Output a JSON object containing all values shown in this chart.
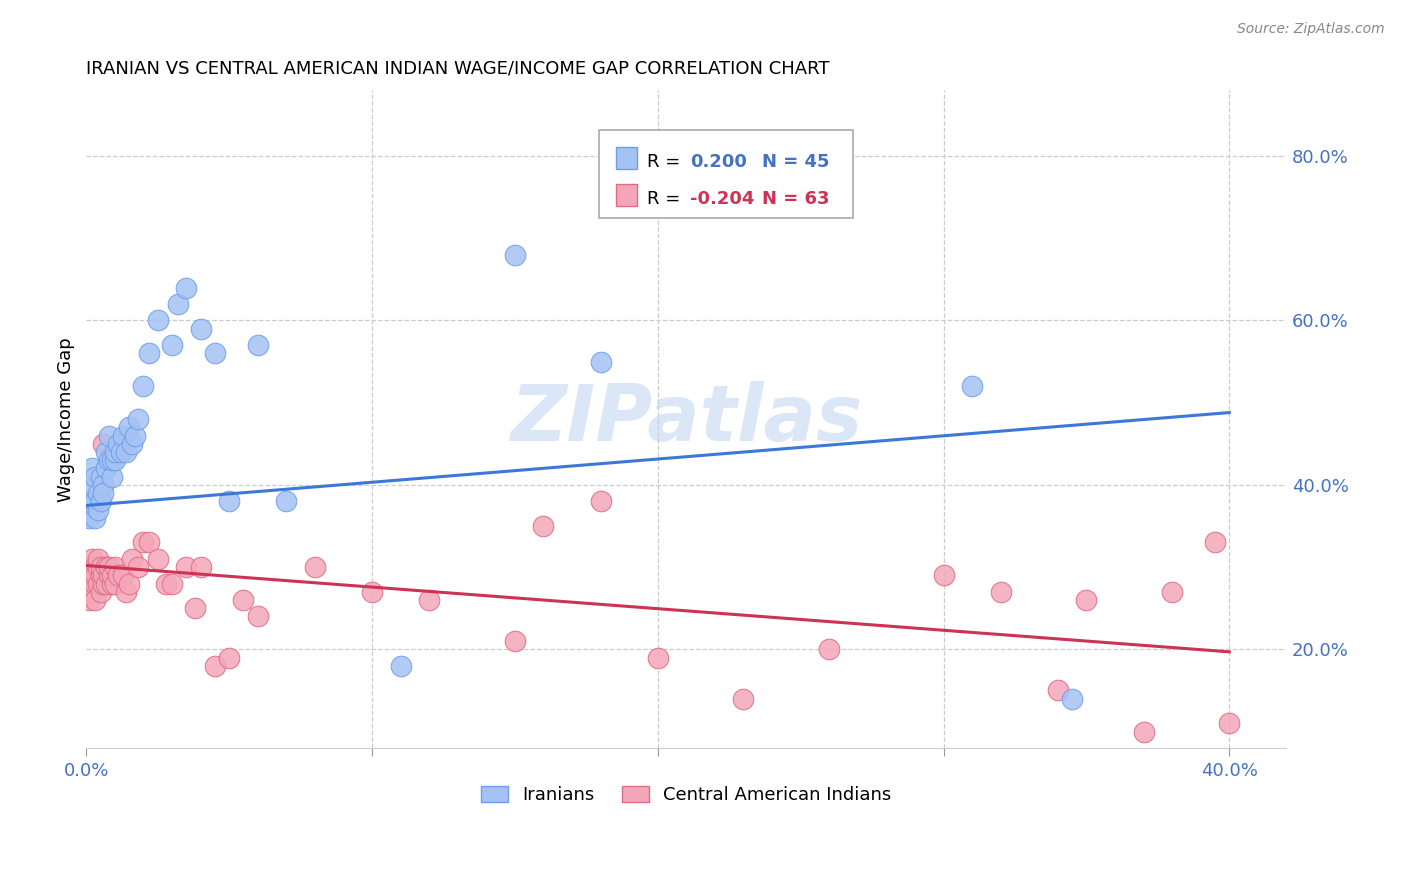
{
  "title": "IRANIAN VS CENTRAL AMERICAN INDIAN WAGE/INCOME GAP CORRELATION CHART",
  "source": "Source: ZipAtlas.com",
  "ylabel": "Wage/Income Gap",
  "xlim": [
    0.0,
    0.42
  ],
  "ylim": [
    0.08,
    0.88
  ],
  "xticks": [
    0.0,
    0.1,
    0.2,
    0.3,
    0.4
  ],
  "xticklabels": [
    "0.0%",
    "",
    "",
    "",
    "40.0%"
  ],
  "yticks_right": [
    0.2,
    0.4,
    0.6,
    0.8
  ],
  "ytick_right_labels": [
    "20.0%",
    "40.0%",
    "60.0%",
    "80.0%"
  ],
  "watermark": "ZIPatlas",
  "blue_color": "#a4c2f4",
  "pink_color": "#f4a7b9",
  "blue_edge_color": "#6d9eeb",
  "pink_edge_color": "#e06c84",
  "blue_line_color": "#3c78d8",
  "pink_line_color": "#cc3355",
  "legend_label_blue": "Iranians",
  "legend_label_pink": "Central American Indians",
  "blue_trend": [
    0.0,
    0.375,
    0.4,
    0.488
  ],
  "pink_trend": [
    0.0,
    0.302,
    0.4,
    0.197
  ],
  "iranians_x": [
    0.001,
    0.001,
    0.002,
    0.002,
    0.003,
    0.003,
    0.003,
    0.004,
    0.004,
    0.005,
    0.005,
    0.006,
    0.006,
    0.007,
    0.007,
    0.008,
    0.008,
    0.009,
    0.009,
    0.01,
    0.01,
    0.011,
    0.012,
    0.013,
    0.014,
    0.015,
    0.016,
    0.017,
    0.018,
    0.02,
    0.022,
    0.025,
    0.03,
    0.032,
    0.035,
    0.04,
    0.045,
    0.05,
    0.06,
    0.07,
    0.11,
    0.15,
    0.18,
    0.31,
    0.345
  ],
  "iranians_y": [
    0.38,
    0.36,
    0.4,
    0.42,
    0.38,
    0.41,
    0.36,
    0.37,
    0.39,
    0.41,
    0.38,
    0.4,
    0.39,
    0.42,
    0.44,
    0.43,
    0.46,
    0.41,
    0.43,
    0.43,
    0.44,
    0.45,
    0.44,
    0.46,
    0.44,
    0.47,
    0.45,
    0.46,
    0.48,
    0.52,
    0.56,
    0.6,
    0.57,
    0.62,
    0.64,
    0.59,
    0.56,
    0.38,
    0.57,
    0.38,
    0.18,
    0.68,
    0.55,
    0.52,
    0.14
  ],
  "cai_x": [
    0.001,
    0.001,
    0.001,
    0.002,
    0.002,
    0.002,
    0.003,
    0.003,
    0.003,
    0.003,
    0.004,
    0.004,
    0.004,
    0.005,
    0.005,
    0.005,
    0.006,
    0.006,
    0.006,
    0.007,
    0.007,
    0.008,
    0.008,
    0.009,
    0.009,
    0.01,
    0.01,
    0.011,
    0.012,
    0.013,
    0.014,
    0.015,
    0.016,
    0.018,
    0.02,
    0.022,
    0.025,
    0.028,
    0.03,
    0.035,
    0.038,
    0.04,
    0.045,
    0.05,
    0.055,
    0.06,
    0.08,
    0.1,
    0.12,
    0.15,
    0.16,
    0.18,
    0.2,
    0.23,
    0.26,
    0.3,
    0.32,
    0.34,
    0.35,
    0.37,
    0.38,
    0.395,
    0.4
  ],
  "cai_y": [
    0.28,
    0.3,
    0.26,
    0.29,
    0.31,
    0.27,
    0.3,
    0.28,
    0.26,
    0.29,
    0.3,
    0.28,
    0.31,
    0.29,
    0.27,
    0.3,
    0.45,
    0.28,
    0.29,
    0.3,
    0.28,
    0.29,
    0.3,
    0.28,
    0.29,
    0.3,
    0.28,
    0.29,
    0.44,
    0.29,
    0.27,
    0.28,
    0.31,
    0.3,
    0.33,
    0.33,
    0.31,
    0.28,
    0.28,
    0.3,
    0.25,
    0.3,
    0.18,
    0.19,
    0.26,
    0.24,
    0.3,
    0.27,
    0.26,
    0.21,
    0.35,
    0.38,
    0.19,
    0.14,
    0.2,
    0.29,
    0.27,
    0.15,
    0.26,
    0.1,
    0.27,
    0.33,
    0.11
  ]
}
